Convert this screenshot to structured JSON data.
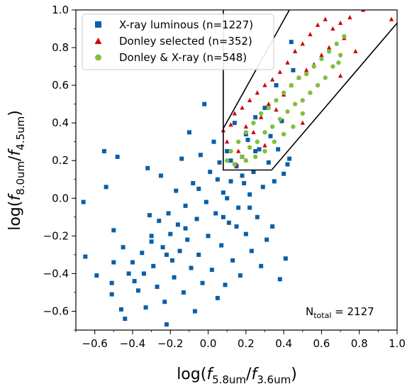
{
  "chart_data": {
    "type": "scatter",
    "title": "",
    "xlabel": "log(f5.8um/f3.6um)",
    "ylabel": "log(f8.0um/f4.5um)",
    "xlim": [
      -0.7,
      1.0
    ],
    "ylim": [
      -0.7,
      1.0
    ],
    "xticks": [
      -0.6,
      -0.4,
      -0.2,
      0.0,
      0.2,
      0.4,
      0.6,
      0.8,
      1.0
    ],
    "yticks": [
      -0.6,
      -0.4,
      -0.2,
      0.0,
      0.2,
      0.4,
      0.6,
      0.8,
      1.0
    ],
    "xtick_labels": [
      "−0.6",
      "−0.4",
      "−0.2",
      "0.0",
      "0.2",
      "0.4",
      "0.6",
      "0.8",
      "1.0"
    ],
    "ytick_labels": [
      "−0.6",
      "−0.4",
      "−0.2",
      "0.0",
      "0.2",
      "0.4",
      "0.6",
      "0.8",
      "1.0"
    ],
    "grid": false,
    "legend_position": "top-left",
    "annotation": "N_total = 2127",
    "series": [
      {
        "name": "X-ray luminous (n=1227)",
        "marker": "square",
        "color": "#0a5fa6",
        "count": 1227,
        "points": [
          [
            -0.66,
            -0.02
          ],
          [
            -0.65,
            -0.31
          ],
          [
            -0.59,
            -0.41
          ],
          [
            -0.55,
            0.25
          ],
          [
            -0.54,
            0.06
          ],
          [
            -0.51,
            -0.45
          ],
          [
            -0.51,
            -0.51
          ],
          [
            -0.5,
            -0.17
          ],
          [
            -0.5,
            -0.34
          ],
          [
            -0.48,
            0.22
          ],
          [
            -0.46,
            -0.59
          ],
          [
            -0.45,
            -0.26
          ],
          [
            -0.44,
            -0.64
          ],
          [
            -0.42,
            -0.4
          ],
          [
            -0.4,
            -0.34
          ],
          [
            -0.39,
            -0.44
          ],
          [
            -0.37,
            -0.49
          ],
          [
            -0.35,
            -0.29
          ],
          [
            -0.34,
            -0.4
          ],
          [
            -0.33,
            -0.58
          ],
          [
            -0.32,
            0.16
          ],
          [
            -0.31,
            -0.09
          ],
          [
            -0.3,
            -0.23
          ],
          [
            -0.29,
            -0.36
          ],
          [
            -0.27,
            -0.47
          ],
          [
            -0.26,
            -0.12
          ],
          [
            -0.25,
            0.12
          ],
          [
            -0.24,
            -0.26
          ],
          [
            -0.23,
            -0.55
          ],
          [
            -0.22,
            -0.67
          ],
          [
            -0.21,
            -0.08
          ],
          [
            -0.2,
            -0.19
          ],
          [
            -0.19,
            -0.33
          ],
          [
            -0.18,
            -0.42
          ],
          [
            -0.17,
            0.04
          ],
          [
            -0.16,
            -0.14
          ],
          [
            -0.15,
            -0.28
          ],
          [
            -0.14,
            0.21
          ],
          [
            -0.13,
            -0.5
          ],
          [
            -0.12,
            -0.04
          ],
          [
            -0.11,
            -0.22
          ],
          [
            -0.1,
            0.35
          ],
          [
            -0.09,
            -0.37
          ],
          [
            -0.08,
            0.08
          ],
          [
            -0.07,
            -0.6
          ],
          [
            -0.06,
            -0.11
          ],
          [
            -0.05,
            -0.3
          ],
          [
            -0.04,
            0.23
          ],
          [
            -0.03,
            -0.45
          ],
          [
            -0.02,
            0.5
          ],
          [
            -0.01,
            -0.02
          ],
          [
            0.0,
            -0.2
          ],
          [
            0.01,
            0.14
          ],
          [
            0.02,
            -0.38
          ],
          [
            0.03,
            0.3
          ],
          [
            0.04,
            -0.08
          ],
          [
            0.05,
            -0.53
          ],
          [
            0.06,
            0.19
          ],
          [
            0.07,
            -0.25
          ],
          [
            0.08,
            0.03
          ],
          [
            0.09,
            -0.46
          ],
          [
            0.1,
            0.25
          ],
          [
            0.11,
            -0.13
          ],
          [
            0.12,
            0.09
          ],
          [
            0.13,
            -0.33
          ],
          [
            0.14,
            0.4
          ],
          [
            0.15,
            0.17
          ],
          [
            0.16,
            -0.05
          ],
          [
            0.17,
            -0.41
          ],
          [
            0.18,
            0.22
          ],
          [
            0.19,
            0.08
          ],
          [
            0.2,
            -0.19
          ],
          [
            0.21,
            0.31
          ],
          [
            0.22,
            0.02
          ],
          [
            0.23,
            -0.28
          ],
          [
            0.24,
            0.14
          ],
          [
            0.25,
            0.43
          ],
          [
            0.26,
            -0.1
          ],
          [
            0.27,
            0.26
          ],
          [
            0.28,
            -0.36
          ],
          [
            0.29,
            0.06
          ],
          [
            0.3,
            0.48
          ],
          [
            0.31,
            -0.22
          ],
          [
            0.32,
            0.19
          ],
          [
            0.33,
            0.33
          ],
          [
            0.34,
            -0.15
          ],
          [
            0.35,
            0.09
          ],
          [
            0.36,
            0.6
          ],
          [
            0.37,
            0.26
          ],
          [
            0.38,
            -0.43
          ],
          [
            0.39,
            0.41
          ],
          [
            0.4,
            0.13
          ],
          [
            0.41,
            -0.32
          ],
          [
            0.42,
            0.18
          ],
          [
            0.43,
            0.21
          ],
          [
            0.44,
            0.83
          ],
          [
            0.45,
            0.68
          ],
          [
            -0.3,
            -0.2
          ],
          [
            -0.22,
            -0.3
          ],
          [
            -0.12,
            -0.16
          ],
          [
            0.05,
            0.1
          ],
          [
            0.12,
            0.2
          ],
          [
            0.18,
            0.12
          ],
          [
            0.2,
            0.34
          ],
          [
            0.25,
            0.25
          ],
          [
            0.15,
            -0.15
          ],
          [
            -0.05,
            0.05
          ],
          [
            0.08,
            -0.1
          ],
          [
            0.1,
            0.0
          ],
          [
            0.22,
            -0.05
          ]
        ]
      },
      {
        "name": "Donley selected (n=352)",
        "marker": "triangle",
        "color": "#cc0a0a",
        "count": 352,
        "points": [
          [
            0.08,
            0.36
          ],
          [
            0.1,
            0.3
          ],
          [
            0.12,
            0.39
          ],
          [
            0.14,
            0.45
          ],
          [
            0.16,
            0.25
          ],
          [
            0.18,
            0.48
          ],
          [
            0.2,
            0.38
          ],
          [
            0.22,
            0.52
          ],
          [
            0.24,
            0.35
          ],
          [
            0.26,
            0.56
          ],
          [
            0.28,
            0.43
          ],
          [
            0.3,
            0.6
          ],
          [
            0.32,
            0.5
          ],
          [
            0.34,
            0.63
          ],
          [
            0.36,
            0.47
          ],
          [
            0.38,
            0.67
          ],
          [
            0.4,
            0.55
          ],
          [
            0.42,
            0.72
          ],
          [
            0.44,
            0.6
          ],
          [
            0.46,
            0.78
          ],
          [
            0.48,
            0.64
          ],
          [
            0.5,
            0.82
          ],
          [
            0.52,
            0.68
          ],
          [
            0.54,
            0.87
          ],
          [
            0.56,
            0.71
          ],
          [
            0.58,
            0.92
          ],
          [
            0.6,
            0.76
          ],
          [
            0.62,
            0.95
          ],
          [
            0.64,
            0.8
          ],
          [
            0.66,
            0.9
          ],
          [
            0.7,
            0.93
          ],
          [
            0.72,
            0.85
          ],
          [
            0.75,
            0.96
          ],
          [
            0.82,
            1.0
          ],
          [
            0.97,
            0.95
          ],
          [
            0.78,
            0.78
          ],
          [
            0.7,
            0.65
          ],
          [
            0.5,
            0.4
          ],
          [
            0.3,
            0.28
          ],
          [
            0.15,
            0.18
          ]
        ]
      },
      {
        "name": "Donley & X-ray (n=548)",
        "marker": "circle",
        "color": "#80c03c",
        "count": 548,
        "points": [
          [
            0.1,
            0.2
          ],
          [
            0.12,
            0.25
          ],
          [
            0.14,
            0.18
          ],
          [
            0.16,
            0.3
          ],
          [
            0.18,
            0.22
          ],
          [
            0.2,
            0.35
          ],
          [
            0.22,
            0.27
          ],
          [
            0.24,
            0.4
          ],
          [
            0.26,
            0.3
          ],
          [
            0.28,
            0.45
          ],
          [
            0.3,
            0.35
          ],
          [
            0.32,
            0.48
          ],
          [
            0.34,
            0.38
          ],
          [
            0.36,
            0.52
          ],
          [
            0.38,
            0.42
          ],
          [
            0.4,
            0.56
          ],
          [
            0.42,
            0.46
          ],
          [
            0.44,
            0.6
          ],
          [
            0.46,
            0.5
          ],
          [
            0.48,
            0.64
          ],
          [
            0.5,
            0.52
          ],
          [
            0.52,
            0.66
          ],
          [
            0.54,
            0.56
          ],
          [
            0.56,
            0.7
          ],
          [
            0.58,
            0.6
          ],
          [
            0.6,
            0.74
          ],
          [
            0.62,
            0.64
          ],
          [
            0.64,
            0.78
          ],
          [
            0.66,
            0.7
          ],
          [
            0.68,
            0.82
          ],
          [
            0.7,
            0.76
          ],
          [
            0.72,
            0.86
          ],
          [
            0.69,
            0.72
          ],
          [
            0.2,
            0.2
          ],
          [
            0.25,
            0.22
          ],
          [
            0.3,
            0.25
          ],
          [
            0.35,
            0.3
          ],
          [
            0.4,
            0.34
          ],
          [
            0.45,
            0.38
          ],
          [
            0.5,
            0.45
          ]
        ]
      }
    ],
    "selection_wedge": {
      "vertices": [
        [
          0.08,
          1.0
        ],
        [
          0.08,
          0.15
        ],
        [
          0.336,
          0.15
        ],
        [
          1.0,
          0.93
        ]
      ],
      "top_line": [
        [
          0.08,
          0.37
        ],
        [
          0.43,
          1.0
        ]
      ],
      "color": "#000000"
    }
  }
}
